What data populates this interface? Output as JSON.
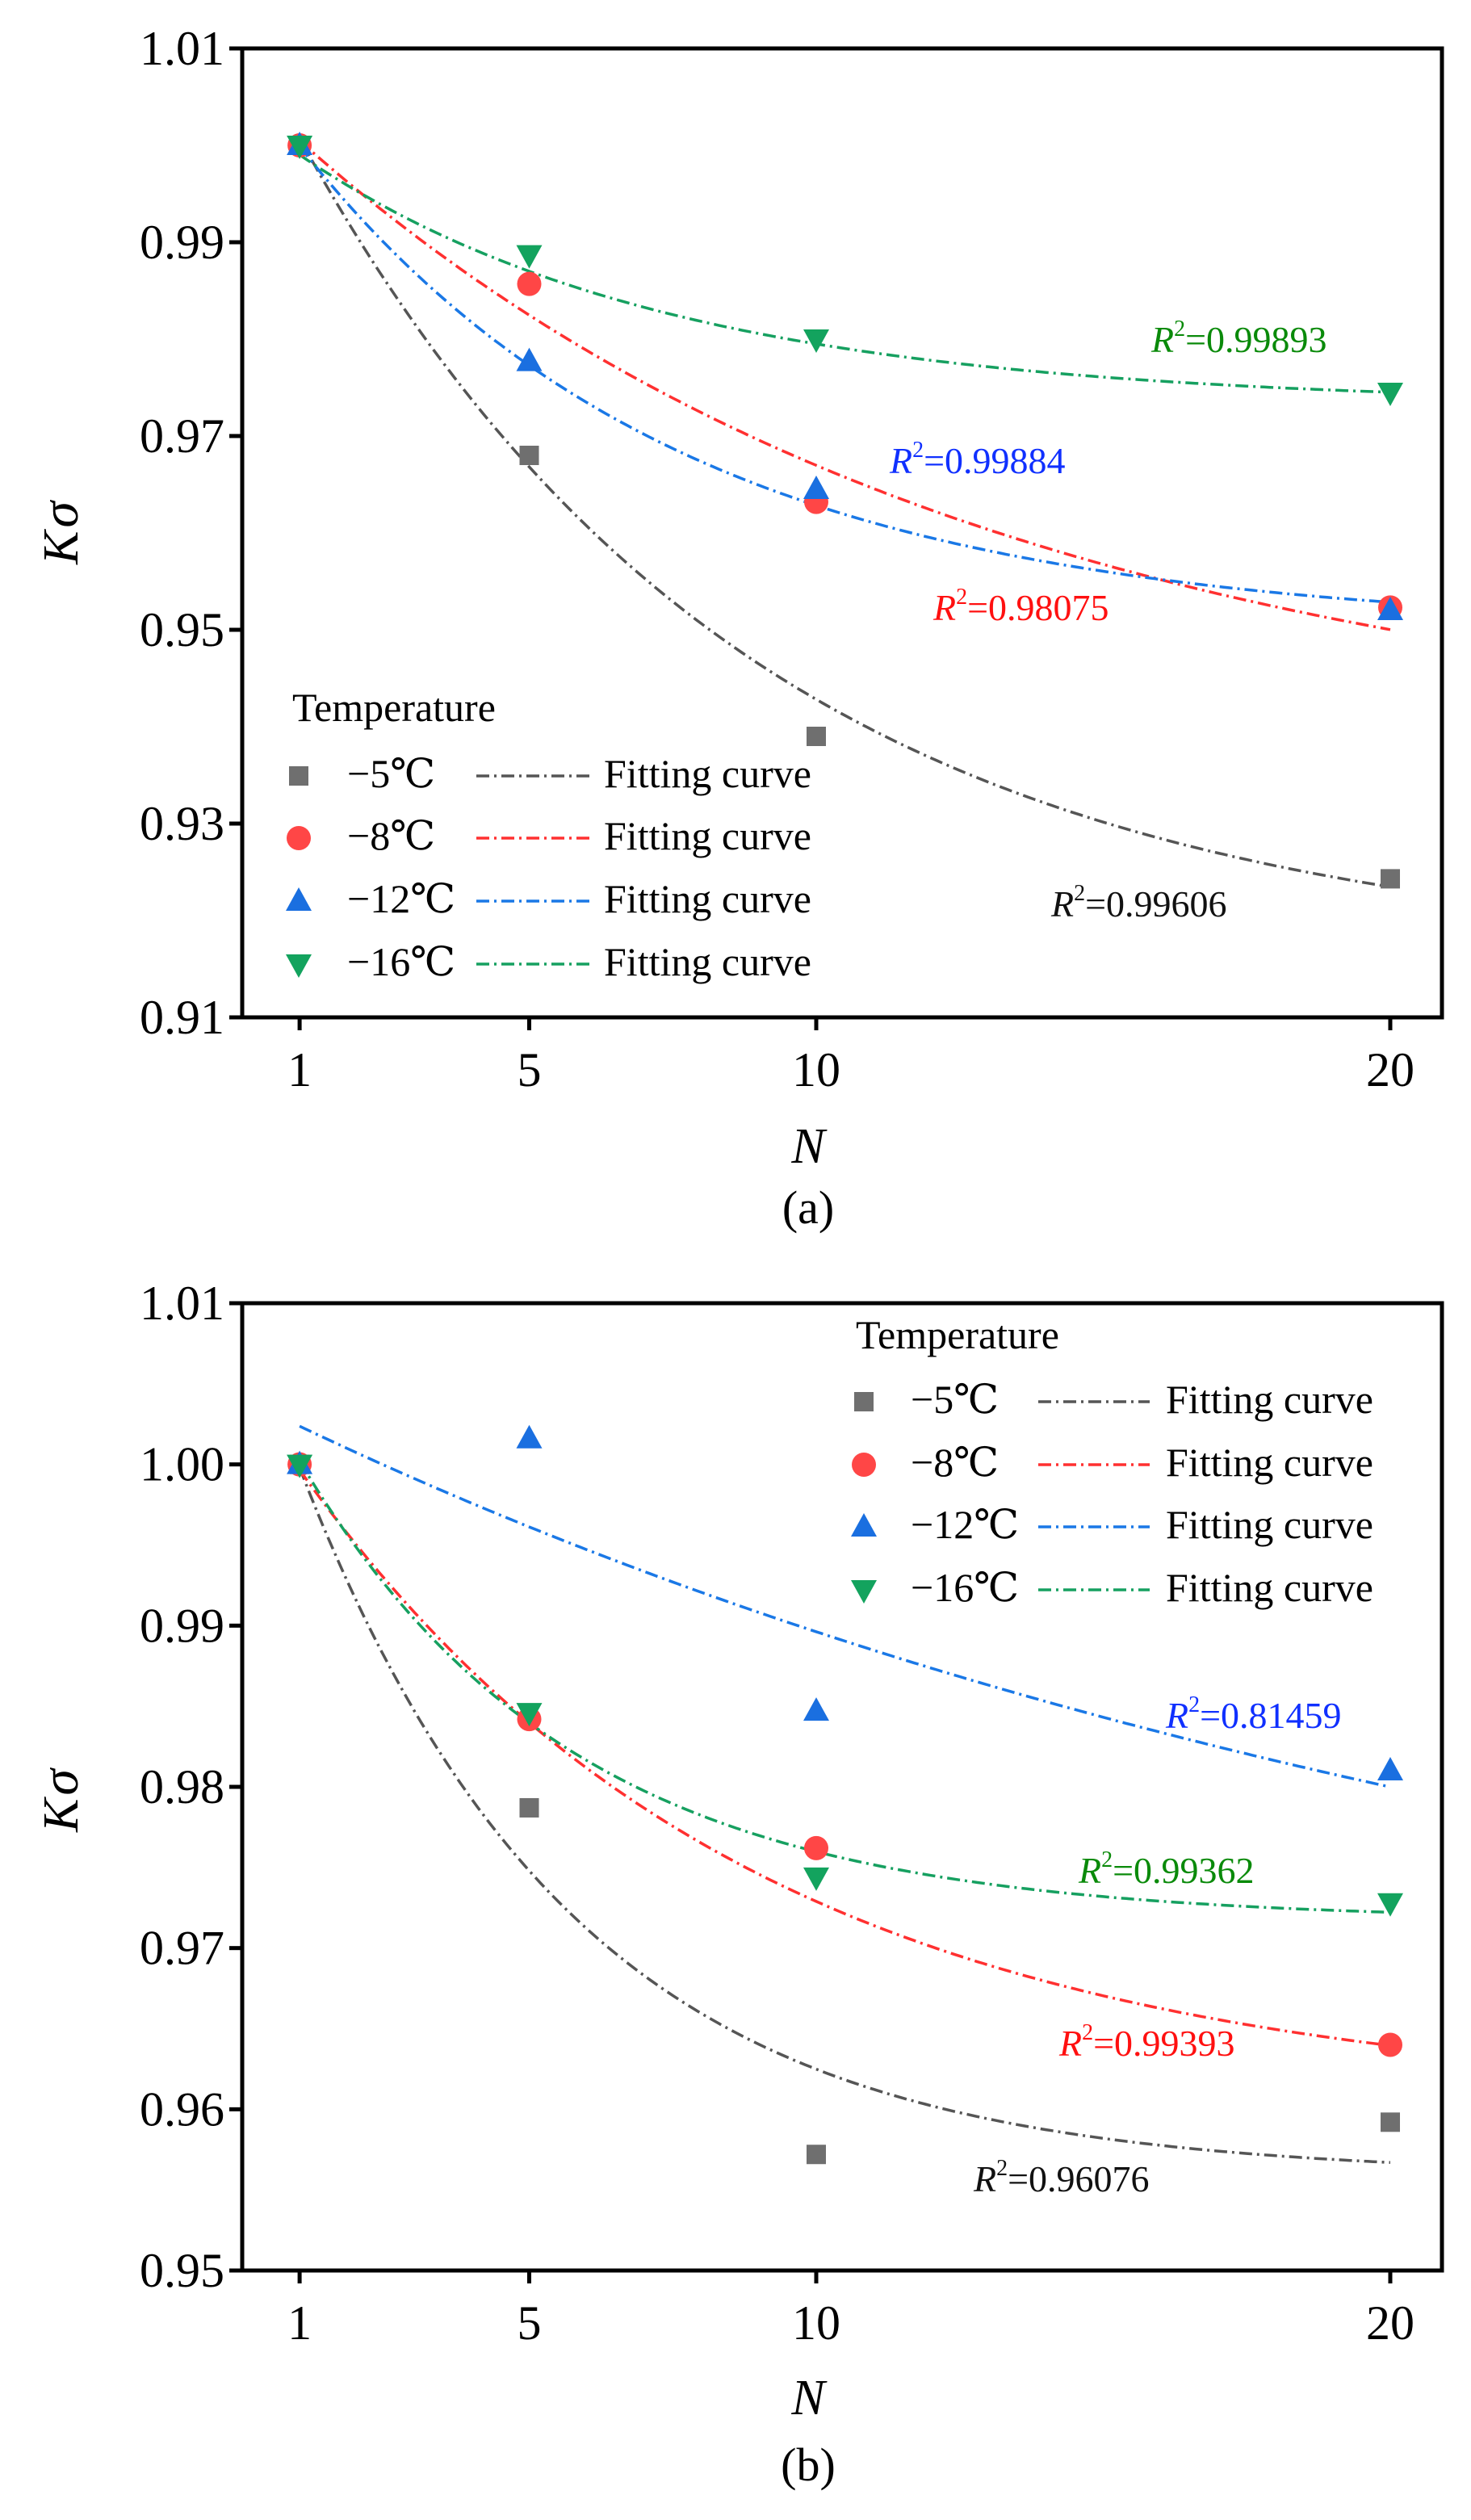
{
  "chart_data": [
    {
      "type": "scatter",
      "panel_label": "(a)",
      "xlabel": "N",
      "ylabel_main": "K",
      "ylabel_sub": "σ",
      "xlim": [
        0,
        20.9
      ],
      "ylim": [
        0.91,
        1.01
      ],
      "xticks": [
        1,
        5,
        10,
        20
      ],
      "xtick_labels": [
        "1",
        "5",
        "10",
        "20"
      ],
      "yticks": [
        0.91,
        0.93,
        0.95,
        0.97,
        0.99,
        1.01
      ],
      "ytick_labels": [
        "0.91",
        "0.93",
        "0.95",
        "0.97",
        "0.99",
        "1.01"
      ],
      "legend": {
        "title": "Temperature",
        "placement": "bottom-left",
        "fit_label": "Fitting curve"
      },
      "x": [
        1,
        5,
        10,
        20
      ],
      "series": [
        {
          "name": "−5℃",
          "marker": "square",
          "color": "#6f6f6f",
          "line_color": "#555555",
          "label_color": "#111111",
          "values": [
            1.0,
            0.968,
            0.939,
            0.9243
          ],
          "fit": {
            "c": 0.916,
            "a": 0.0963,
            "r": 0.88
          },
          "r2_label": "=0.99606"
        },
        {
          "name": "−8℃",
          "marker": "circle",
          "color": "#ff4646",
          "line_color": "#ff3030",
          "label_color": "#ff1010",
          "values": [
            1.0,
            0.9857,
            0.9632,
            0.9523
          ],
          "fit": {
            "c": 0.937,
            "a": 0.069,
            "r": 0.92
          },
          "r2_label": "=0.98075"
        },
        {
          "name": "−12℃",
          "marker": "triangle-up",
          "color": "#1a6fe0",
          "line_color": "#1a78e6",
          "label_color": "#1030ff",
          "values": [
            1.0,
            0.9777,
            0.9645,
            0.952
          ],
          "fit": {
            "c": 0.95,
            "a": 0.058,
            "r": 0.86
          },
          "r2_label": "=0.99884"
        },
        {
          "name": "−16℃",
          "marker": "triangle-down",
          "color": "#13a35e",
          "line_color": "#16a060",
          "label_color": "#0a8a0a",
          "values": [
            1.0,
            0.9887,
            0.98,
            0.9745
          ],
          "fit": {
            "c": 0.9732,
            "a": 0.0302,
            "r": 0.855
          },
          "r2_label": "=0.99893"
        }
      ]
    },
    {
      "type": "scatter",
      "panel_label": "(b)",
      "xlabel": "N",
      "ylabel_main": "K",
      "ylabel_sub": "σ",
      "xlim": [
        0,
        20.9
      ],
      "ylim": [
        0.95,
        1.01
      ],
      "xticks": [
        1,
        5,
        10,
        20
      ],
      "xtick_labels": [
        "1",
        "5",
        "10",
        "20"
      ],
      "yticks": [
        0.95,
        0.96,
        0.97,
        0.98,
        0.99,
        1.0,
        1.01
      ],
      "ytick_labels": [
        "0.95",
        "0.96",
        "0.97",
        "0.98",
        "0.99",
        "1.00",
        "1.01"
      ],
      "legend": {
        "title": "Temperature",
        "placement": "top-right",
        "fit_label": "Fitting curve"
      },
      "x": [
        1,
        5,
        10,
        20
      ],
      "series": [
        {
          "name": "−5℃",
          "marker": "square",
          "color": "#6f6f6f",
          "line_color": "#555555",
          "label_color": "#111111",
          "values": [
            1.0,
            0.9787,
            0.9572,
            0.9592
          ],
          "fit": {
            "c": 0.9559,
            "a": 0.0542,
            "r": 0.81
          },
          "r2_label": "=0.96076"
        },
        {
          "name": "−8℃",
          "marker": "circle",
          "color": "#ff4646",
          "line_color": "#ff3030",
          "label_color": "#ff1010",
          "values": [
            1.0,
            0.9842,
            0.9762,
            0.964
          ],
          "fit": {
            "c": 0.9605,
            "a": 0.0445,
            "r": 0.88
          },
          "r2_label": "=0.99393"
        },
        {
          "name": "−12℃",
          "marker": "triangle-up",
          "color": "#1a6fe0",
          "line_color": "#1a78e6",
          "label_color": "#1030ff",
          "values": [
            1.0,
            1.0016,
            0.9847,
            0.981
          ],
          "fit": {
            "c": 0.9609,
            "a": 0.0432,
            "r": 0.96
          },
          "r2_label": "=0.81459"
        },
        {
          "name": "−16℃",
          "marker": "triangle-down",
          "color": "#13a35e",
          "line_color": "#16a060",
          "label_color": "#0a8a0a",
          "values": [
            1.0,
            0.9846,
            0.9744,
            0.9728
          ],
          "fit": {
            "c": 0.9717,
            "a": 0.0352,
            "r": 0.81
          },
          "r2_label": "=0.99362"
        }
      ]
    }
  ]
}
